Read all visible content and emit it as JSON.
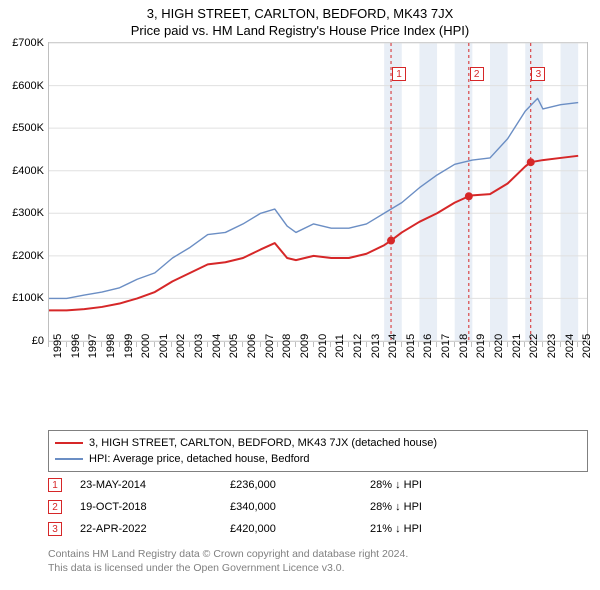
{
  "title": "3, HIGH STREET, CARLTON, BEDFORD, MK43 7JX",
  "subtitle": "Price paid vs. HM Land Registry's House Price Index (HPI)",
  "chart": {
    "type": "line",
    "background_color": "#ffffff",
    "plot_border_color": "#bfbfbf",
    "grid_color": "#e0e0e0",
    "xlim": [
      1995,
      2025.5
    ],
    "ylim": [
      0,
      700000
    ],
    "y_ticks": [
      0,
      100000,
      200000,
      300000,
      400000,
      500000,
      600000,
      700000
    ],
    "y_tick_labels": [
      "£0",
      "£100K",
      "£200K",
      "£300K",
      "£400K",
      "£500K",
      "£600K",
      "£700K"
    ],
    "x_ticks": [
      1995,
      1996,
      1997,
      1998,
      1999,
      2000,
      2001,
      2002,
      2003,
      2004,
      2005,
      2006,
      2007,
      2008,
      2009,
      2010,
      2011,
      2012,
      2013,
      2014,
      2015,
      2016,
      2017,
      2018,
      2019,
      2020,
      2021,
      2022,
      2023,
      2024,
      2025
    ],
    "label_fontsize": 11,
    "shade_color": "#e8eef6",
    "shade_years": [
      [
        2014,
        2015
      ],
      [
        2016,
        2017
      ],
      [
        2018,
        2019
      ],
      [
        2020,
        2021
      ],
      [
        2022,
        2023
      ],
      [
        2024,
        2025
      ]
    ],
    "sale_lines": {
      "color": "#d62728",
      "dash": "3,3",
      "years": [
        2014.39,
        2018.8,
        2022.31
      ]
    },
    "markers_on_chart": [
      {
        "n": "1",
        "x": 2014.9,
        "y": 625000
      },
      {
        "n": "2",
        "x": 2019.3,
        "y": 625000
      },
      {
        "n": "3",
        "x": 2022.8,
        "y": 625000
      }
    ],
    "series": [
      {
        "name": "subject",
        "color": "#d62728",
        "width": 2,
        "points": [
          [
            1995,
            72000
          ],
          [
            1996,
            72000
          ],
          [
            1997,
            75000
          ],
          [
            1998,
            80000
          ],
          [
            1999,
            88000
          ],
          [
            2000,
            100000
          ],
          [
            2001,
            115000
          ],
          [
            2002,
            140000
          ],
          [
            2003,
            160000
          ],
          [
            2004,
            180000
          ],
          [
            2005,
            185000
          ],
          [
            2006,
            195000
          ],
          [
            2007,
            215000
          ],
          [
            2007.8,
            230000
          ],
          [
            2008.5,
            195000
          ],
          [
            2009,
            190000
          ],
          [
            2010,
            200000
          ],
          [
            2011,
            195000
          ],
          [
            2012,
            195000
          ],
          [
            2013,
            205000
          ],
          [
            2014,
            225000
          ],
          [
            2014.39,
            236000
          ],
          [
            2015,
            255000
          ],
          [
            2016,
            280000
          ],
          [
            2017,
            300000
          ],
          [
            2018,
            325000
          ],
          [
            2018.8,
            340000
          ],
          [
            2019,
            342000
          ],
          [
            2020,
            345000
          ],
          [
            2021,
            370000
          ],
          [
            2022,
            410000
          ],
          [
            2022.31,
            420000
          ],
          [
            2023,
            425000
          ],
          [
            2024,
            430000
          ],
          [
            2025,
            435000
          ]
        ],
        "sale_dots": [
          [
            2014.39,
            236000
          ],
          [
            2018.8,
            340000
          ],
          [
            2022.31,
            420000
          ]
        ]
      },
      {
        "name": "hpi",
        "color": "#6b8ec4",
        "width": 1.4,
        "points": [
          [
            1995,
            100000
          ],
          [
            1996,
            100000
          ],
          [
            1997,
            108000
          ],
          [
            1998,
            115000
          ],
          [
            1999,
            125000
          ],
          [
            2000,
            145000
          ],
          [
            2001,
            160000
          ],
          [
            2002,
            195000
          ],
          [
            2003,
            220000
          ],
          [
            2004,
            250000
          ],
          [
            2005,
            255000
          ],
          [
            2006,
            275000
          ],
          [
            2007,
            300000
          ],
          [
            2007.8,
            310000
          ],
          [
            2008.5,
            270000
          ],
          [
            2009,
            255000
          ],
          [
            2010,
            275000
          ],
          [
            2011,
            265000
          ],
          [
            2012,
            265000
          ],
          [
            2013,
            275000
          ],
          [
            2014,
            300000
          ],
          [
            2015,
            325000
          ],
          [
            2016,
            360000
          ],
          [
            2017,
            390000
          ],
          [
            2018,
            415000
          ],
          [
            2019,
            425000
          ],
          [
            2020,
            430000
          ],
          [
            2021,
            475000
          ],
          [
            2022,
            540000
          ],
          [
            2022.7,
            570000
          ],
          [
            2023,
            545000
          ],
          [
            2024,
            555000
          ],
          [
            2025,
            560000
          ]
        ]
      }
    ]
  },
  "legend": {
    "border_color": "#808080",
    "items": [
      {
        "color": "#d62728",
        "width": 2,
        "label": "3, HIGH STREET, CARLTON, BEDFORD, MK43 7JX (detached house)"
      },
      {
        "color": "#6b8ec4",
        "width": 1.4,
        "label": "HPI: Average price, detached house, Bedford"
      }
    ]
  },
  "sales": [
    {
      "n": "1",
      "date": "23-MAY-2014",
      "price": "£236,000",
      "diff": "28% ↓ HPI"
    },
    {
      "n": "2",
      "date": "19-OCT-2018",
      "price": "£340,000",
      "diff": "28% ↓ HPI"
    },
    {
      "n": "3",
      "date": "22-APR-2022",
      "price": "£420,000",
      "diff": "21% ↓ HPI"
    }
  ],
  "footer_line1": "Contains HM Land Registry data © Crown copyright and database right 2024.",
  "footer_line2": "This data is licensed under the Open Government Licence v3.0."
}
